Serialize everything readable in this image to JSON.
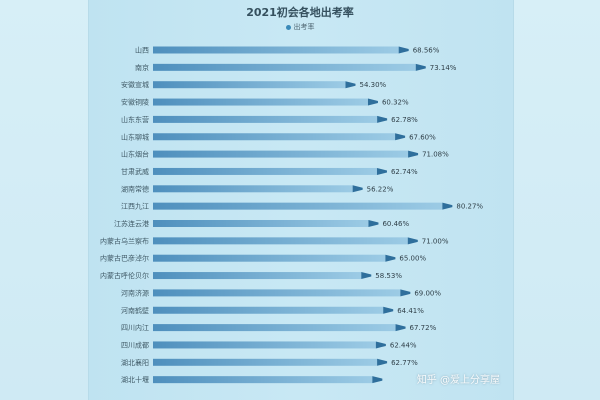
{
  "chart_data": {
    "type": "bar",
    "orientation": "horizontal",
    "title": "2021初会各地出考率",
    "legend_position": "top-center",
    "categories": [
      "山西",
      "南京",
      "安徽宣城",
      "安徽铜陵",
      "山东东营",
      "山东聊城",
      "山东烟台",
      "甘肃武威",
      "湖南常德",
      "江西九江",
      "江苏连云港",
      "内蒙古乌兰察布",
      "内蒙古巴彦淖尔",
      "内蒙古呼伦贝尔",
      "河南济源",
      "河南鹤壁",
      "四川内江",
      "四川成都",
      "湖北襄阳",
      "湖北十堰"
    ],
    "series": [
      {
        "name": "出考率",
        "values": [
          68.56,
          73.14,
          54.3,
          60.32,
          62.78,
          67.6,
          71.08,
          62.74,
          56.22,
          80.27,
          60.46,
          71.0,
          65.0,
          58.53,
          69.0,
          64.41,
          67.72,
          62.44,
          62.77,
          61.5
        ],
        "value_labels": [
          "68.56%",
          "73.14%",
          "54.30%",
          "60.32%",
          "62.78%",
          "67.60%",
          "71.08%",
          "62.74%",
          "56.22%",
          "80.27%",
          "60.46%",
          "71.00%",
          "65.00%",
          "58.53%",
          "69.00%",
          "64.41%",
          "67.72%",
          "62.44%",
          "62.77%",
          ""
        ]
      }
    ],
    "xlim": [
      0,
      85
    ],
    "grid": false,
    "colors": {
      "bar_start": "#4e8fbd",
      "bar_end": "#9ccbe5",
      "tip": "#2f6f9c"
    }
  },
  "watermark": "知乎 @爱上分享屋"
}
